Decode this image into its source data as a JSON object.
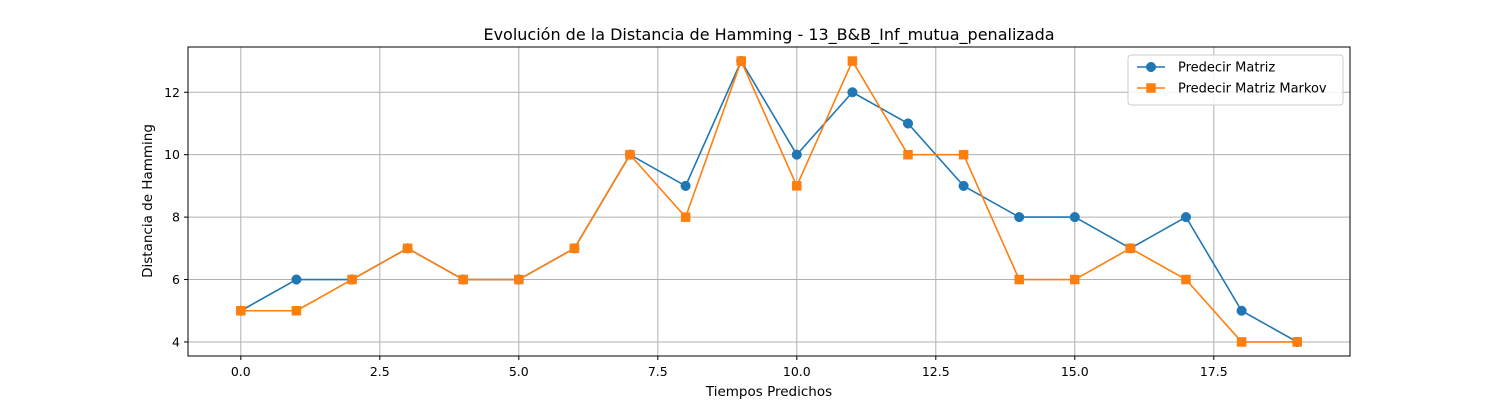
{
  "chart_data": {
    "type": "line",
    "title": "Evolución de la Distancia de Hamming - 13_B&B_Inf_mutua_penalizada",
    "xlabel": "Tiempos Predichos",
    "ylabel": "Distancia de Hamming",
    "xlim": [
      -0.95,
      19.95
    ],
    "ylim": [
      3.55,
      13.45
    ],
    "xticks": [
      0.0,
      2.5,
      5.0,
      7.5,
      10.0,
      12.5,
      15.0,
      17.5
    ],
    "xtick_labels": [
      "0.0",
      "2.5",
      "5.0",
      "7.5",
      "10.0",
      "12.5",
      "15.0",
      "17.5"
    ],
    "yticks": [
      4,
      6,
      8,
      10,
      12
    ],
    "ytick_labels": [
      "4",
      "6",
      "8",
      "10",
      "12"
    ],
    "grid": true,
    "legend_position": "top-right",
    "x": [
      0,
      1,
      2,
      3,
      4,
      5,
      6,
      7,
      8,
      9,
      10,
      11,
      12,
      13,
      14,
      15,
      16,
      17,
      18,
      19
    ],
    "series": [
      {
        "name": "Predecir Matriz",
        "color": "#1f77b4",
        "marker": "circle",
        "values": [
          5,
          6,
          6,
          7,
          6,
          6,
          7,
          10,
          9,
          13,
          10,
          12,
          11,
          9,
          8,
          8,
          7,
          8,
          5,
          4
        ]
      },
      {
        "name": "Predecir Matriz Markov",
        "color": "#ff7f0e",
        "marker": "square",
        "values": [
          5,
          5,
          6,
          7,
          6,
          6,
          7,
          10,
          8,
          13,
          9,
          13,
          10,
          10,
          6,
          6,
          7,
          6,
          4,
          4
        ]
      }
    ]
  }
}
